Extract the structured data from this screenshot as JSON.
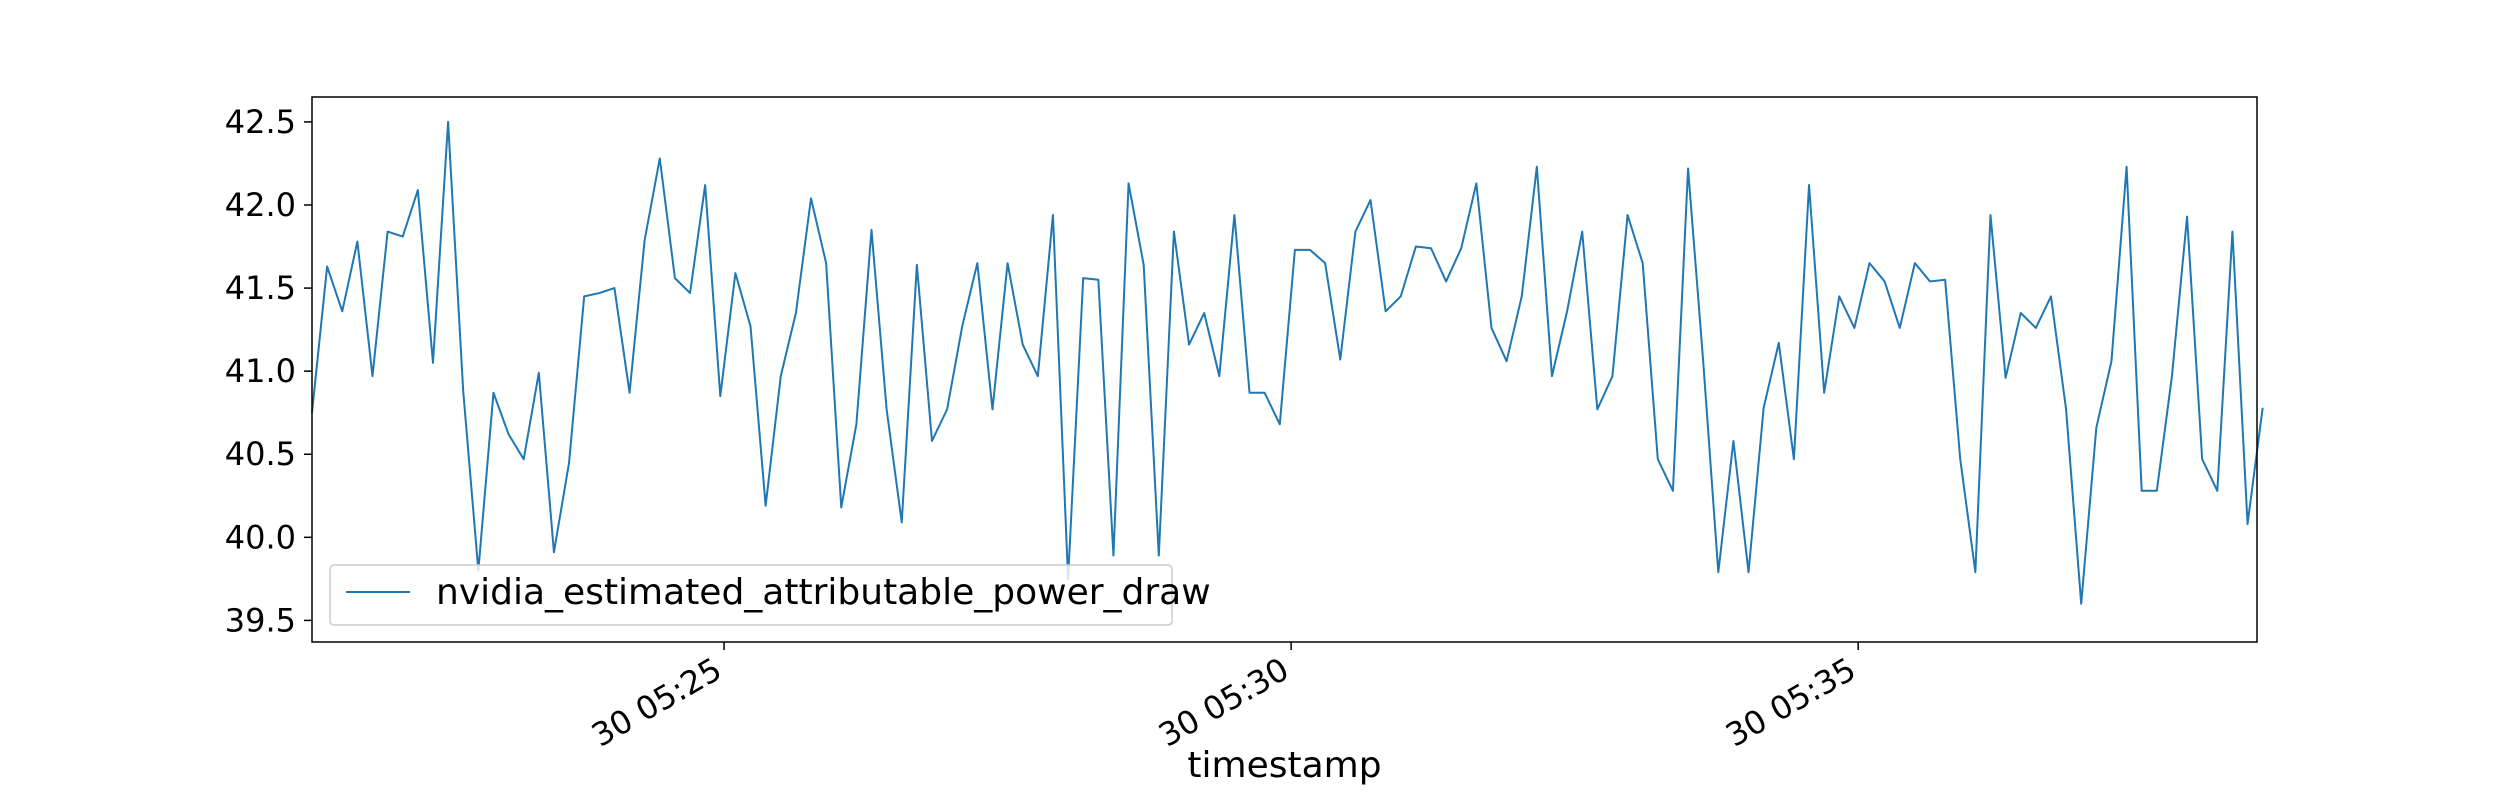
{
  "chart_data": {
    "type": "line",
    "title": "",
    "xlabel": "timestamp",
    "ylabel": "",
    "x_axis": {
      "start": "05:21:22",
      "end": "05:38:31",
      "ticks": [
        {
          "time": "05:25:00",
          "label": "30 05:25"
        },
        {
          "time": "05:30:00",
          "label": "30 05:30"
        },
        {
          "time": "05:35:00",
          "label": "30 05:35"
        }
      ]
    },
    "ylim": [
      39.37,
      42.65
    ],
    "yticks": [
      39.5,
      40.0,
      40.5,
      41.0,
      41.5,
      42.0,
      42.5
    ],
    "ytick_labels": [
      "39.5",
      "40.0",
      "40.5",
      "41.0",
      "41.5",
      "42.0",
      "42.5"
    ],
    "grid": false,
    "legend": {
      "location": "lower-left"
    },
    "series": [
      {
        "name": "nvidia_estimated_attributable_power_draw",
        "color": "#1f77b4",
        "sample_interval_seconds": 8,
        "start_time": "05:21:22",
        "values": [
          40.75,
          41.63,
          41.36,
          41.78,
          40.97,
          41.84,
          41.81,
          42.09,
          41.05,
          42.5,
          40.88,
          39.8,
          40.87,
          40.62,
          40.47,
          40.99,
          39.91,
          40.45,
          41.45,
          41.47,
          41.5,
          40.87,
          41.79,
          42.28,
          41.56,
          41.47,
          42.12,
          40.85,
          41.59,
          41.27,
          40.19,
          40.97,
          41.35,
          42.04,
          41.65,
          40.18,
          40.68,
          41.85,
          40.77,
          40.09,
          41.64,
          40.58,
          40.77,
          41.27,
          41.65,
          40.77,
          41.65,
          41.16,
          40.97,
          41.94,
          39.75,
          41.56,
          41.55,
          39.89,
          42.13,
          41.64,
          39.89,
          41.84,
          41.16,
          41.35,
          40.97,
          41.94,
          40.87,
          40.87,
          40.68,
          41.73,
          41.73,
          41.65,
          41.07,
          41.84,
          42.03,
          41.36,
          41.45,
          41.75,
          41.74,
          41.54,
          41.74,
          42.13,
          41.26,
          41.06,
          41.45,
          42.23,
          40.97,
          41.36,
          41.84,
          40.77,
          40.97,
          41.94,
          41.65,
          40.47,
          40.28,
          42.22,
          41.06,
          39.79,
          40.58,
          39.79,
          40.78,
          41.17,
          40.47,
          42.12,
          40.87,
          41.45,
          41.26,
          41.65,
          41.54,
          41.26,
          41.65,
          41.54,
          41.55,
          40.47,
          39.79,
          41.94,
          40.96,
          41.35,
          41.26,
          41.45,
          40.77,
          39.6,
          40.66,
          41.06,
          42.23,
          40.28,
          40.28,
          40.97,
          41.93,
          40.47,
          40.28,
          41.84,
          40.08,
          40.78
        ]
      }
    ]
  }
}
